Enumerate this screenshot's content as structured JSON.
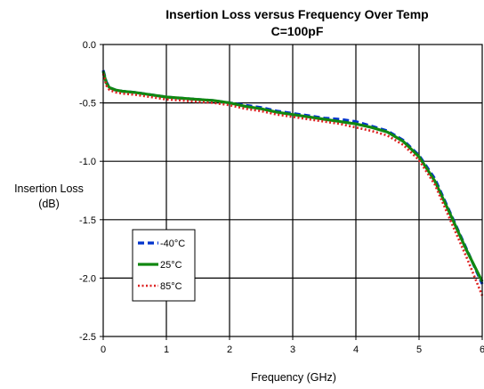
{
  "chart_data": {
    "type": "line",
    "title": "Insertion Loss versus Frequency Over Temp",
    "subtitle": "C=100pF",
    "xlabel": "Frequency (GHz)",
    "ylabel": "Insertion Loss",
    "ylabel_unit": "(dB)",
    "xlim": [
      0,
      6
    ],
    "ylim": [
      -2.5,
      0.0
    ],
    "xticks": [
      "0",
      "1",
      "2",
      "3",
      "4",
      "5",
      "6"
    ],
    "yticks": [
      "0.0",
      "-0.5",
      "-1.0",
      "-1.5",
      "-2.0",
      "-2.5"
    ],
    "grid": true,
    "legend_position": "bottom-left",
    "series": [
      {
        "name": "-40°C",
        "color": "#0033cc",
        "style": "dashed",
        "x": [
          0.0,
          0.05,
          0.1,
          0.2,
          0.3,
          0.5,
          0.75,
          1.0,
          1.25,
          1.5,
          1.75,
          2.0,
          2.25,
          2.5,
          2.75,
          3.0,
          3.25,
          3.5,
          3.75,
          4.0,
          4.25,
          4.5,
          4.75,
          5.0,
          5.25,
          5.5,
          5.75,
          6.0
        ],
        "y": [
          -0.22,
          -0.32,
          -0.37,
          -0.39,
          -0.4,
          -0.41,
          -0.43,
          -0.45,
          -0.46,
          -0.47,
          -0.48,
          -0.5,
          -0.52,
          -0.54,
          -0.57,
          -0.59,
          -0.61,
          -0.63,
          -0.64,
          -0.66,
          -0.7,
          -0.74,
          -0.82,
          -0.95,
          -1.15,
          -1.45,
          -1.75,
          -2.05
        ]
      },
      {
        "name": "25°C",
        "color": "#118811",
        "style": "solid",
        "x": [
          0.0,
          0.05,
          0.1,
          0.2,
          0.3,
          0.5,
          0.75,
          1.0,
          1.25,
          1.5,
          1.75,
          2.0,
          2.25,
          2.5,
          2.75,
          3.0,
          3.25,
          3.5,
          3.75,
          4.0,
          4.25,
          4.5,
          4.75,
          5.0,
          5.25,
          5.5,
          5.75,
          6.0
        ],
        "y": [
          -0.23,
          -0.33,
          -0.37,
          -0.39,
          -0.4,
          -0.41,
          -0.43,
          -0.45,
          -0.46,
          -0.47,
          -0.48,
          -0.5,
          -0.53,
          -0.55,
          -0.58,
          -0.6,
          -0.62,
          -0.64,
          -0.66,
          -0.68,
          -0.71,
          -0.75,
          -0.83,
          -0.96,
          -1.17,
          -1.46,
          -1.76,
          -2.03
        ]
      },
      {
        "name": "85°C",
        "color": "#dd2222",
        "style": "dotted",
        "x": [
          0.0,
          0.05,
          0.1,
          0.2,
          0.3,
          0.5,
          0.75,
          1.0,
          1.25,
          1.5,
          1.75,
          2.0,
          2.25,
          2.5,
          2.75,
          3.0,
          3.25,
          3.5,
          3.75,
          4.0,
          4.25,
          4.5,
          4.75,
          5.0,
          5.25,
          5.5,
          5.75,
          6.0
        ],
        "y": [
          -0.25,
          -0.35,
          -0.39,
          -0.41,
          -0.42,
          -0.43,
          -0.45,
          -0.47,
          -0.48,
          -0.49,
          -0.5,
          -0.52,
          -0.55,
          -0.57,
          -0.6,
          -0.62,
          -0.64,
          -0.66,
          -0.68,
          -0.71,
          -0.74,
          -0.78,
          -0.86,
          -0.99,
          -1.2,
          -1.51,
          -1.82,
          -2.15
        ]
      }
    ]
  }
}
